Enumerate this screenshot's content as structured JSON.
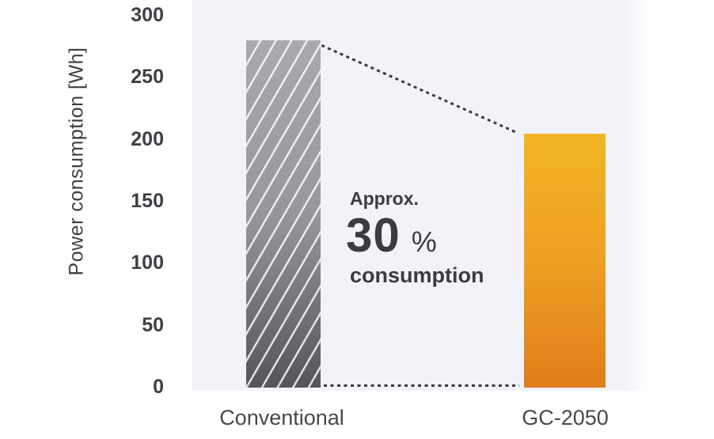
{
  "chart_data": {
    "type": "bar",
    "categories": [
      "Conventional",
      "GC-2050"
    ],
    "values": [
      280,
      205
    ],
    "title": "",
    "xlabel": "",
    "ylabel": "Power consumption [Wh]",
    "yticks": [
      300,
      250,
      200,
      150,
      100,
      50,
      0
    ],
    "ylim": [
      0,
      300
    ],
    "grid": false,
    "legend": "none",
    "plot_background": "#f2f3f8",
    "text_color": "#3e3e44",
    "dotted_line_color": "#3b3b3f",
    "bar_styles": [
      {
        "name": "Conventional",
        "top_color": "#a9a9af",
        "mid_color": "#96969b",
        "bottom_color": "#55555a",
        "hatch": "white-diagonal-lines"
      },
      {
        "name": "GC-2050",
        "top_color": "#f1b524",
        "mid_color": "#eda023",
        "bottom_color": "#e07d1a",
        "hatch": "none"
      }
    ],
    "annotation": {
      "prefix": "Approx.",
      "value": "30",
      "unit": "%",
      "suffix": "consumption"
    },
    "connectors": "dotted lines linking top of Conventional bar to top of GC-2050 bar, and a dotted baseline at 0 between the bars"
  }
}
